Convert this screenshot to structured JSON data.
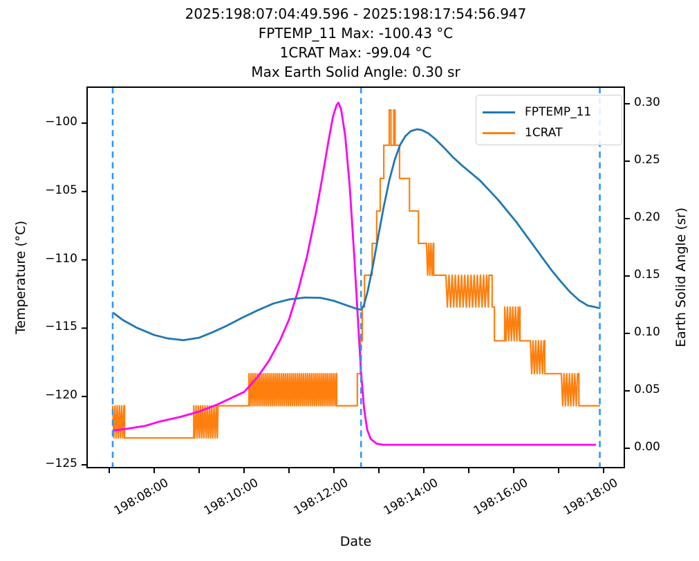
{
  "chart_data": {
    "type": "line",
    "title_lines": [
      "2025:198:07:04:49.596 - 2025:198:17:54:56.947",
      "FPTEMP_11 Max: -100.43 °C",
      "1CRAT Max: -99.04 °C",
      "Max Earth Solid Angle: 0.30 sr"
    ],
    "xlabel": "Date",
    "ylabel_left": "Temperature (°C)",
    "ylabel_right": "Earth Solid Angle (sr)",
    "x_axis": {
      "unit": "hours_of_day_198",
      "lim": [
        6.49,
        18.46
      ],
      "minor_tick_hours": [
        7,
        9,
        11,
        13,
        15,
        17
      ],
      "major_ticks": [
        {
          "hour": 8,
          "label": "198:08:00"
        },
        {
          "hour": 10,
          "label": "198:10:00"
        },
        {
          "hour": 12,
          "label": "198:12:00"
        },
        {
          "hour": 14,
          "label": "198:14:00"
        },
        {
          "hour": 16,
          "label": "198:16:00"
        },
        {
          "hour": 18,
          "label": "198:18:00"
        }
      ]
    },
    "left_axis": {
      "lim": [
        -125.2,
        -97.3
      ],
      "ticks": [
        {
          "value": -100,
          "label": "−100"
        },
        {
          "value": -105,
          "label": "−105"
        },
        {
          "value": -110,
          "label": "−110"
        },
        {
          "value": -115,
          "label": "−115"
        },
        {
          "value": -120,
          "label": "−120"
        },
        {
          "value": -125,
          "label": "−125"
        }
      ]
    },
    "right_axis": {
      "lim": [
        -0.017,
        0.315
      ],
      "ticks": [
        {
          "value": 0.0,
          "label": "0.00"
        },
        {
          "value": 0.05,
          "label": "0.05"
        },
        {
          "value": 0.1,
          "label": "0.10"
        },
        {
          "value": 0.15,
          "label": "0.15"
        },
        {
          "value": 0.2,
          "label": "0.20"
        },
        {
          "value": 0.25,
          "label": "0.25"
        },
        {
          "value": 0.3,
          "label": "0.30"
        }
      ]
    },
    "vlines": {
      "color": "#2e96ff",
      "style": "dashed",
      "hours": [
        7.077,
        12.603,
        17.916
      ]
    },
    "legend": {
      "position": "upper right",
      "entries": [
        {
          "label": "FPTEMP_11",
          "color": "#1f77b4"
        },
        {
          "label": "1CRAT",
          "color": "#ff7f0e"
        }
      ]
    },
    "series": [
      {
        "name": "1CRAT",
        "color": "#ff7f0e",
        "axis": "left",
        "kind": "segments",
        "segments": [
          {
            "t0": 7.077,
            "t1": 7.34,
            "type": "osc",
            "hi": -120.68,
            "lo": -123.03,
            "period": 0.05
          },
          {
            "t0": 7.34,
            "t1": 8.88,
            "type": "flat",
            "level": -123.03
          },
          {
            "t0": 8.88,
            "t1": 9.42,
            "type": "osc",
            "hi": -120.68,
            "lo": -123.03,
            "period": 0.05
          },
          {
            "t0": 9.42,
            "t1": 10.11,
            "type": "flat",
            "level": -120.68
          },
          {
            "t0": 10.11,
            "t1": 12.06,
            "type": "osc",
            "hi": -118.33,
            "lo": -120.68,
            "period": 0.045
          },
          {
            "t0": 12.06,
            "t1": 12.52,
            "type": "flat",
            "level": -120.68
          },
          {
            "t0": 12.52,
            "t1": 12.59,
            "type": "flat",
            "level": -118.33
          },
          {
            "t0": 12.59,
            "t1": 12.63,
            "type": "flat",
            "level": -115.92
          },
          {
            "t0": 12.63,
            "t1": 12.68,
            "type": "flat",
            "level": -113.45
          },
          {
            "t0": 12.68,
            "t1": 12.85,
            "type": "flat",
            "level": -111.13
          },
          {
            "t0": 12.85,
            "t1": 12.95,
            "type": "flat",
            "level": -108.8
          },
          {
            "t0": 12.95,
            "t1": 13.03,
            "type": "flat",
            "level": -106.43
          },
          {
            "t0": 13.03,
            "t1": 13.11,
            "type": "flat",
            "level": -104.05
          },
          {
            "t0": 13.11,
            "t1": 13.23,
            "type": "flat",
            "level": -101.62
          },
          {
            "t0": 13.23,
            "t1": 13.27,
            "type": "flat",
            "level": -99.04
          },
          {
            "t0": 13.27,
            "t1": 13.33,
            "type": "flat",
            "level": -101.62
          },
          {
            "t0": 13.33,
            "t1": 13.36,
            "type": "flat",
            "level": -99.04
          },
          {
            "t0": 13.36,
            "t1": 13.46,
            "type": "flat",
            "level": -101.62
          },
          {
            "t0": 13.46,
            "t1": 13.68,
            "type": "flat",
            "level": -104.05
          },
          {
            "t0": 13.68,
            "t1": 13.88,
            "type": "flat",
            "level": -106.43
          },
          {
            "t0": 13.88,
            "t1": 14.06,
            "type": "flat",
            "level": -108.8
          },
          {
            "t0": 14.06,
            "t1": 14.22,
            "type": "osc",
            "hi": -108.8,
            "lo": -111.13,
            "period": 0.05
          },
          {
            "t0": 14.22,
            "t1": 14.49,
            "type": "flat",
            "level": -111.13
          },
          {
            "t0": 14.49,
            "t1": 15.45,
            "type": "osc",
            "hi": -111.13,
            "lo": -113.45,
            "period": 0.07
          },
          {
            "t0": 15.45,
            "t1": 15.52,
            "type": "flat",
            "level": -111.13
          },
          {
            "t0": 15.52,
            "t1": 15.57,
            "type": "flat",
            "level": -113.45
          },
          {
            "t0": 15.57,
            "t1": 15.8,
            "type": "flat",
            "level": -115.92
          },
          {
            "t0": 15.8,
            "t1": 16.14,
            "type": "osc",
            "hi": -113.45,
            "lo": -115.92,
            "period": 0.06
          },
          {
            "t0": 16.14,
            "t1": 16.37,
            "type": "flat",
            "level": -115.92
          },
          {
            "t0": 16.37,
            "t1": 16.69,
            "type": "osc",
            "hi": -115.92,
            "lo": -118.33,
            "period": 0.06
          },
          {
            "t0": 16.69,
            "t1": 17.06,
            "type": "flat",
            "level": -118.33
          },
          {
            "t0": 17.06,
            "t1": 17.45,
            "type": "osc",
            "hi": -118.33,
            "lo": -120.68,
            "period": 0.06
          },
          {
            "t0": 17.45,
            "t1": 17.923,
            "type": "flat",
            "level": -120.68
          }
        ]
      },
      {
        "name": "Earth Solid Angle",
        "color": "#ff00f0",
        "axis": "right",
        "kind": "points",
        "points": [
          [
            7.08,
            0.0155
          ],
          [
            7.4,
            0.017
          ],
          [
            7.8,
            0.0195
          ],
          [
            8.1,
            0.023
          ],
          [
            8.6,
            0.0275
          ],
          [
            9.0,
            0.032
          ],
          [
            9.4,
            0.038
          ],
          [
            9.7,
            0.0435
          ],
          [
            10.0,
            0.049
          ],
          [
            10.3,
            0.062
          ],
          [
            10.55,
            0.076
          ],
          [
            10.8,
            0.094
          ],
          [
            11.0,
            0.112
          ],
          [
            11.2,
            0.137
          ],
          [
            11.4,
            0.167
          ],
          [
            11.6,
            0.205
          ],
          [
            11.75,
            0.238
          ],
          [
            11.88,
            0.268
          ],
          [
            11.98,
            0.289
          ],
          [
            12.06,
            0.299
          ],
          [
            12.1,
            0.301
          ],
          [
            12.16,
            0.295
          ],
          [
            12.25,
            0.272
          ],
          [
            12.35,
            0.228
          ],
          [
            12.45,
            0.168
          ],
          [
            12.53,
            0.115
          ],
          [
            12.6,
            0.068
          ],
          [
            12.67,
            0.035
          ],
          [
            12.74,
            0.016
          ],
          [
            12.82,
            0.008
          ],
          [
            12.95,
            0.004
          ],
          [
            13.1,
            0.003
          ],
          [
            17.83,
            0.003
          ]
        ]
      },
      {
        "name": "FPTEMP_11",
        "color": "#1f77b4",
        "axis": "left",
        "kind": "points",
        "points": [
          [
            7.08,
            -113.85
          ],
          [
            7.3,
            -114.4
          ],
          [
            7.6,
            -114.95
          ],
          [
            8.0,
            -115.5
          ],
          [
            8.3,
            -115.75
          ],
          [
            8.65,
            -115.88
          ],
          [
            9.0,
            -115.7
          ],
          [
            9.3,
            -115.3
          ],
          [
            9.6,
            -114.85
          ],
          [
            9.95,
            -114.25
          ],
          [
            10.3,
            -113.7
          ],
          [
            10.65,
            -113.2
          ],
          [
            11.0,
            -112.9
          ],
          [
            11.35,
            -112.76
          ],
          [
            11.7,
            -112.78
          ],
          [
            12.0,
            -113.0
          ],
          [
            12.3,
            -113.35
          ],
          [
            12.5,
            -113.58
          ],
          [
            12.6,
            -113.65
          ],
          [
            12.66,
            -113.4
          ],
          [
            12.75,
            -112.3
          ],
          [
            12.87,
            -110.4
          ],
          [
            12.99,
            -108.2
          ],
          [
            13.11,
            -106.1
          ],
          [
            13.23,
            -104.2
          ],
          [
            13.35,
            -102.7
          ],
          [
            13.47,
            -101.6
          ],
          [
            13.59,
            -100.95
          ],
          [
            13.71,
            -100.58
          ],
          [
            13.85,
            -100.45
          ],
          [
            13.95,
            -100.5
          ],
          [
            14.1,
            -100.75
          ],
          [
            14.25,
            -101.15
          ],
          [
            14.45,
            -101.8
          ],
          [
            14.65,
            -102.5
          ],
          [
            14.85,
            -103.1
          ],
          [
            15.05,
            -103.65
          ],
          [
            15.25,
            -104.2
          ],
          [
            15.45,
            -104.9
          ],
          [
            15.65,
            -105.6
          ],
          [
            15.85,
            -106.4
          ],
          [
            16.05,
            -107.2
          ],
          [
            16.25,
            -108.1
          ],
          [
            16.45,
            -109.0
          ],
          [
            16.65,
            -109.9
          ],
          [
            16.85,
            -110.8
          ],
          [
            17.05,
            -111.6
          ],
          [
            17.25,
            -112.35
          ],
          [
            17.45,
            -112.95
          ],
          [
            17.65,
            -113.35
          ],
          [
            17.8,
            -113.45
          ],
          [
            17.92,
            -113.55
          ]
        ]
      }
    ]
  }
}
